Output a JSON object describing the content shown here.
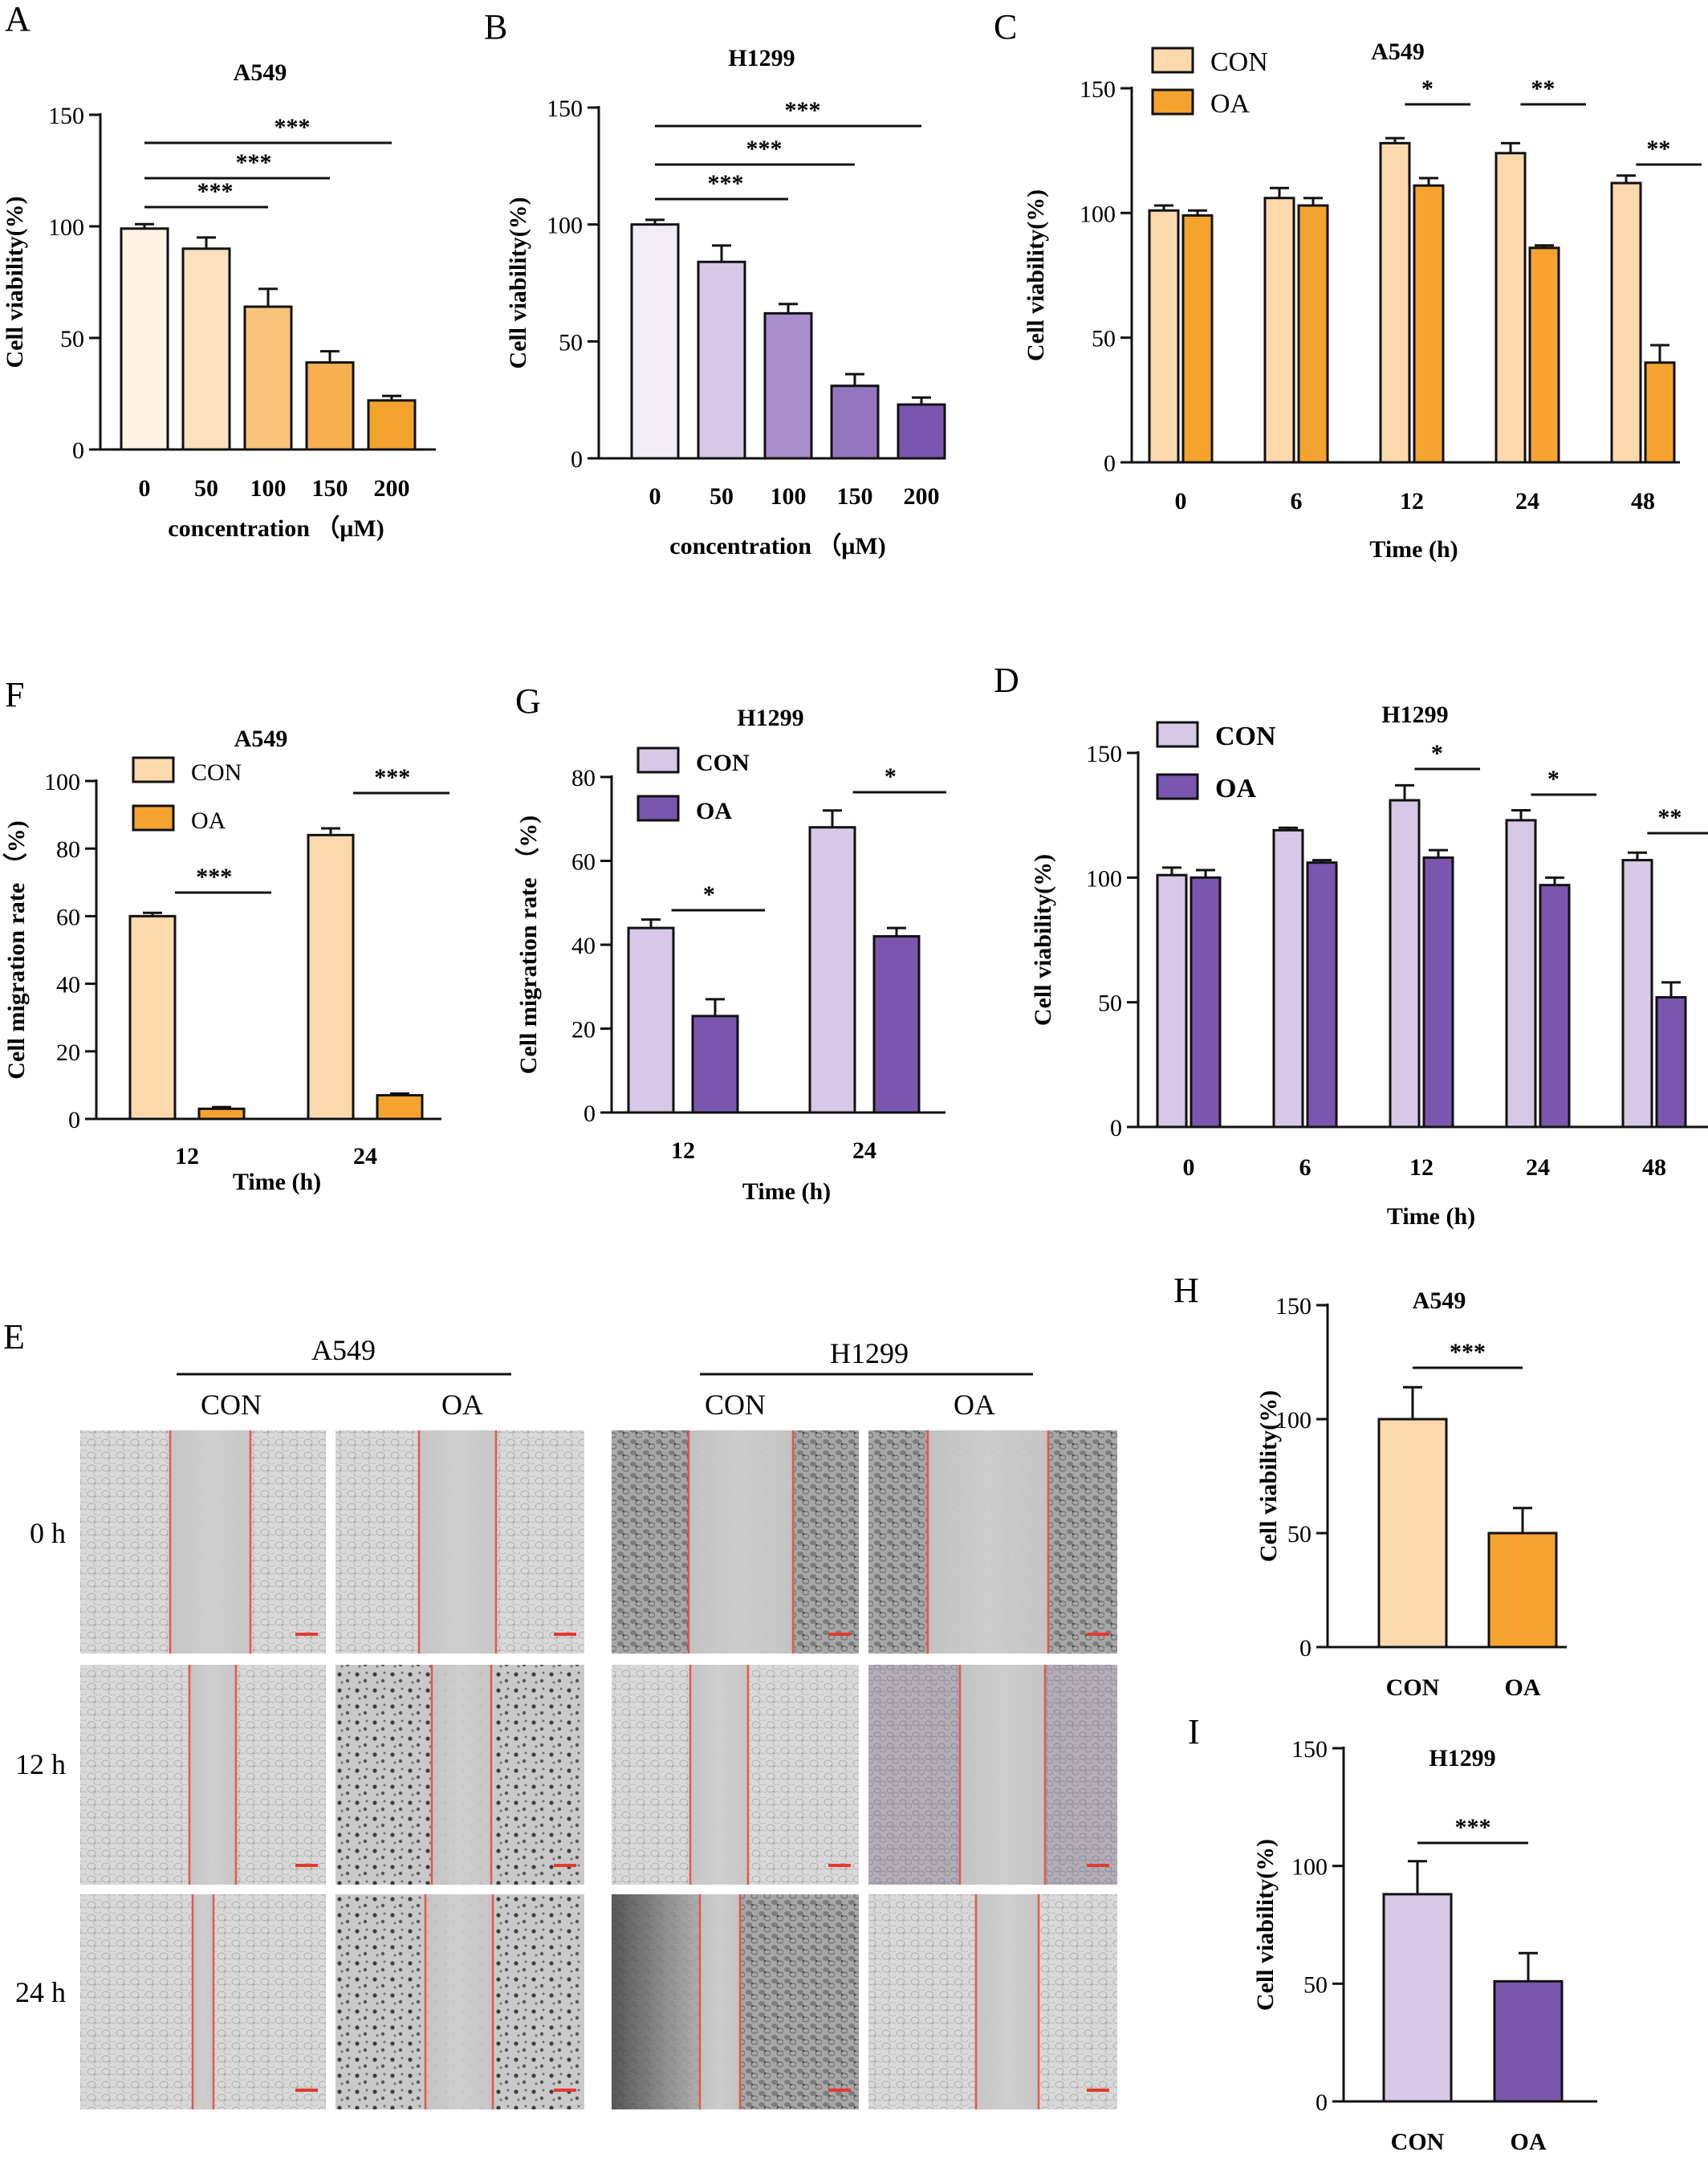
{
  "panels": [
    {
      "id": "A",
      "letter": "A"
    },
    {
      "id": "B",
      "letter": "B"
    },
    {
      "id": "C",
      "letter": "C"
    },
    {
      "id": "D",
      "letter": "D"
    },
    {
      "id": "E",
      "letter": "E"
    },
    {
      "id": "F",
      "letter": "F"
    },
    {
      "id": "G",
      "letter": "G"
    },
    {
      "id": "H",
      "letter": "H"
    },
    {
      "id": "I",
      "letter": "I"
    }
  ],
  "chart_data": [
    {
      "panel": "A",
      "type": "bar",
      "title": "A549",
      "ylabel": "Cell viability(%)",
      "xlabel": "concentration （μM)",
      "ylim": [
        0,
        150
      ],
      "yticks": [
        0,
        50,
        100,
        150
      ],
      "categories": [
        "0",
        "50",
        "100",
        "150",
        "200"
      ],
      "values": [
        99,
        90,
        64,
        39,
        22
      ],
      "errors": [
        2,
        5,
        8,
        5,
        2
      ],
      "colors": [
        "#fff3e4",
        "#fde0bd",
        "#f9c47c",
        "#f7b050",
        "#f5a32f"
      ],
      "significance": [
        {
          "from": 0,
          "to": 2,
          "label": "***"
        },
        {
          "from": 0,
          "to": 3,
          "label": "***"
        },
        {
          "from": 0,
          "to": 4,
          "label": "***"
        }
      ],
      "legend": []
    },
    {
      "panel": "B",
      "type": "bar",
      "title": "H1299",
      "ylabel": "Cell viability(%)",
      "xlabel": "concentration （μM)",
      "ylim": [
        0,
        150
      ],
      "yticks": [
        0,
        50,
        100,
        150
      ],
      "categories": [
        "0",
        "50",
        "100",
        "150",
        "200"
      ],
      "values": [
        100,
        84,
        62,
        31,
        23
      ],
      "errors": [
        2,
        7,
        4,
        5,
        3
      ],
      "colors": [
        "#f1ecf6",
        "#d6c8e6",
        "#a98dcc",
        "#9574c0",
        "#7b56ae"
      ],
      "significance": [
        {
          "from": 0,
          "to": 2,
          "label": "***"
        },
        {
          "from": 0,
          "to": 3,
          "label": "***"
        },
        {
          "from": 0,
          "to": 4,
          "label": "***"
        }
      ],
      "legend": []
    },
    {
      "panel": "C",
      "type": "bar",
      "title": "A549",
      "ylabel": "Cell viability(%)",
      "xlabel": "Time (h)",
      "ylim": [
        0,
        150
      ],
      "yticks": [
        0,
        50,
        100,
        150
      ],
      "categories": [
        "0",
        "6",
        "12",
        "24",
        "48"
      ],
      "series": [
        {
          "name": "CON",
          "color": "#fcd9ad",
          "values": [
            101,
            106,
            128,
            124,
            112
          ],
          "errors": [
            2,
            4,
            2,
            4,
            3
          ]
        },
        {
          "name": "OA",
          "color": "#f5a32f",
          "values": [
            99,
            103,
            111,
            86,
            40
          ],
          "errors": [
            2,
            3,
            3,
            1,
            7
          ]
        }
      ],
      "significance": [
        {
          "category": 2,
          "label": "*"
        },
        {
          "category": 3,
          "label": "**"
        },
        {
          "category": 4,
          "label": "**"
        }
      ],
      "legend": [
        "CON",
        "OA"
      ]
    },
    {
      "panel": "F",
      "type": "bar",
      "title": "A549",
      "ylabel": "Cell migration rate （%)",
      "xlabel": "Time (h)",
      "ylim": [
        0,
        100
      ],
      "yticks": [
        0,
        20,
        40,
        60,
        80,
        100
      ],
      "categories": [
        "12",
        "24"
      ],
      "series": [
        {
          "name": "CON",
          "color": "#fcd9ad",
          "values": [
            60,
            84
          ],
          "errors": [
            1,
            2
          ]
        },
        {
          "name": "OA",
          "color": "#f5a32f",
          "values": [
            3,
            7
          ],
          "errors": [
            0.5,
            0.5
          ]
        }
      ],
      "significance": [
        {
          "category": 0,
          "label": "***"
        },
        {
          "category": 1,
          "label": "***"
        }
      ],
      "legend": [
        "CON",
        "OA"
      ]
    },
    {
      "panel": "G",
      "type": "bar",
      "title": "H1299",
      "ylabel": "Cell migration rate （%)",
      "xlabel": "Time (h)",
      "ylim": [
        0,
        80
      ],
      "yticks": [
        0,
        20,
        40,
        60,
        80
      ],
      "categories": [
        "12",
        "24"
      ],
      "series": [
        {
          "name": "CON",
          "color": "#d6c8e6",
          "values": [
            44,
            68
          ],
          "errors": [
            2,
            4
          ]
        },
        {
          "name": "OA",
          "color": "#7b56ae",
          "values": [
            23,
            42
          ],
          "errors": [
            4,
            2
          ]
        }
      ],
      "significance": [
        {
          "category": 0,
          "label": "*"
        },
        {
          "category": 1,
          "label": "*"
        }
      ],
      "legend": [
        "CON",
        "OA"
      ]
    },
    {
      "panel": "D",
      "type": "bar",
      "title": "H1299",
      "ylabel": "Cell viability(%)",
      "xlabel": "Time (h)",
      "ylim": [
        0,
        150
      ],
      "yticks": [
        0,
        50,
        100,
        150
      ],
      "categories": [
        "0",
        "6",
        "12",
        "24",
        "48"
      ],
      "series": [
        {
          "name": "CON",
          "color": "#d6c8e6",
          "values": [
            101,
            119,
            131,
            123,
            107
          ],
          "errors": [
            3,
            1,
            6,
            4,
            3
          ]
        },
        {
          "name": "OA",
          "color": "#7b56ae",
          "values": [
            100,
            106,
            108,
            97,
            52
          ],
          "errors": [
            3,
            1,
            3,
            3,
            6
          ]
        }
      ],
      "significance": [
        {
          "category": 2,
          "label": "*"
        },
        {
          "category": 3,
          "label": "*"
        },
        {
          "category": 4,
          "label": "**"
        }
      ],
      "legend": [
        "CON",
        "OA"
      ]
    },
    {
      "panel": "H",
      "type": "bar",
      "title": "A549",
      "ylabel": "Cell viability(%)",
      "xlabel": "",
      "ylim": [
        0,
        150
      ],
      "yticks": [
        0,
        50,
        100,
        150
      ],
      "categories": [
        "CON",
        "OA"
      ],
      "values": [
        100,
        50
      ],
      "errors": [
        14,
        11
      ],
      "colors": [
        "#fcd9ad",
        "#f5a32f"
      ],
      "significance": [
        {
          "from": 0,
          "to": 1,
          "label": "***"
        }
      ],
      "legend": []
    },
    {
      "panel": "I",
      "type": "bar",
      "title": "H1299",
      "ylabel": "Cell viability(%)",
      "xlabel": "",
      "ylim": [
        0,
        150
      ],
      "yticks": [
        0,
        50,
        100,
        150
      ],
      "categories": [
        "CON",
        "OA"
      ],
      "values": [
        88,
        51
      ],
      "errors": [
        14,
        12
      ],
      "colors": [
        "#d6c8e6",
        "#7b56ae"
      ],
      "significance": [
        {
          "from": 0,
          "to": 1,
          "label": "***"
        }
      ],
      "legend": []
    }
  ],
  "migration_panel": {
    "letter": "E",
    "groups": [
      {
        "name": "A549",
        "columns": [
          "CON",
          "OA"
        ]
      },
      {
        "name": "H1299",
        "columns": [
          "CON",
          "OA"
        ]
      }
    ],
    "rows": [
      "0 h",
      "12 h",
      "24 h"
    ],
    "line_color": "#e0584e",
    "scalebar_color": "#e23a2e"
  }
}
